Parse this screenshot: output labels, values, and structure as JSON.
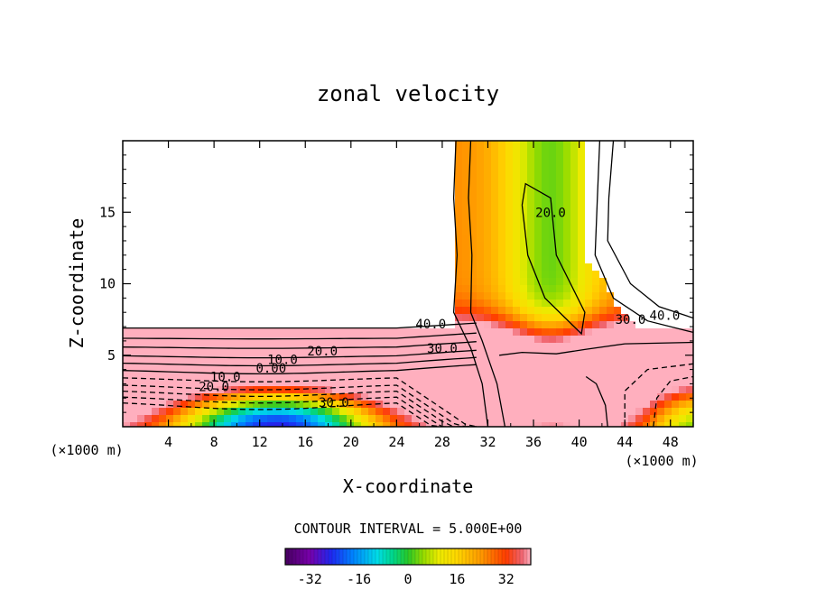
{
  "chart_data": {
    "type": "contour",
    "title": "zonal velocity",
    "xlabel": "X-coordinate",
    "ylabel": "Z-coordinate",
    "x_unit_left": "(×1000 m)",
    "x_unit_right": "(×1000 m)",
    "xlim": [
      0,
      50
    ],
    "ylim": [
      0,
      20
    ],
    "x_ticks": [
      "4",
      "8",
      "12",
      "16",
      "20",
      "24",
      "28",
      "32",
      "36",
      "40",
      "44",
      "48"
    ],
    "y_ticks": [
      "5",
      "10",
      "15"
    ],
    "contour_interval_text": "CONTOUR INTERVAL = 5.000E+00",
    "contour_interval": 5.0,
    "contour_labels": [
      {
        "text": "40.0",
        "x": 27,
        "z": 7.2
      },
      {
        "text": "30.0",
        "x": 28,
        "z": 5.5
      },
      {
        "text": "20.0",
        "x": 17.5,
        "z": 5.3
      },
      {
        "text": "10.0",
        "x": 14,
        "z": 4.7
      },
      {
        "text": "0.00",
        "x": 13,
        "z": 4.1
      },
      {
        "text": "10.0",
        "x": 9,
        "z": 3.5
      },
      {
        "text": "20.0",
        "x": 8,
        "z": 2.8
      },
      {
        "text": "30.0",
        "x": 18.5,
        "z": 1.7
      },
      {
        "text": "20.0",
        "x": 37.5,
        "z": 15
      },
      {
        "text": "30.0",
        "x": 44.5,
        "z": 7.5
      },
      {
        "text": "40.0",
        "x": 47.5,
        "z": 7.8
      }
    ],
    "colorbar": {
      "min": -40,
      "max": 40,
      "ticks": [
        "-32",
        "-16",
        "0",
        "16",
        "32"
      ],
      "tick_values": [
        -32,
        -16,
        0,
        16,
        32
      ]
    },
    "grid": false
  }
}
